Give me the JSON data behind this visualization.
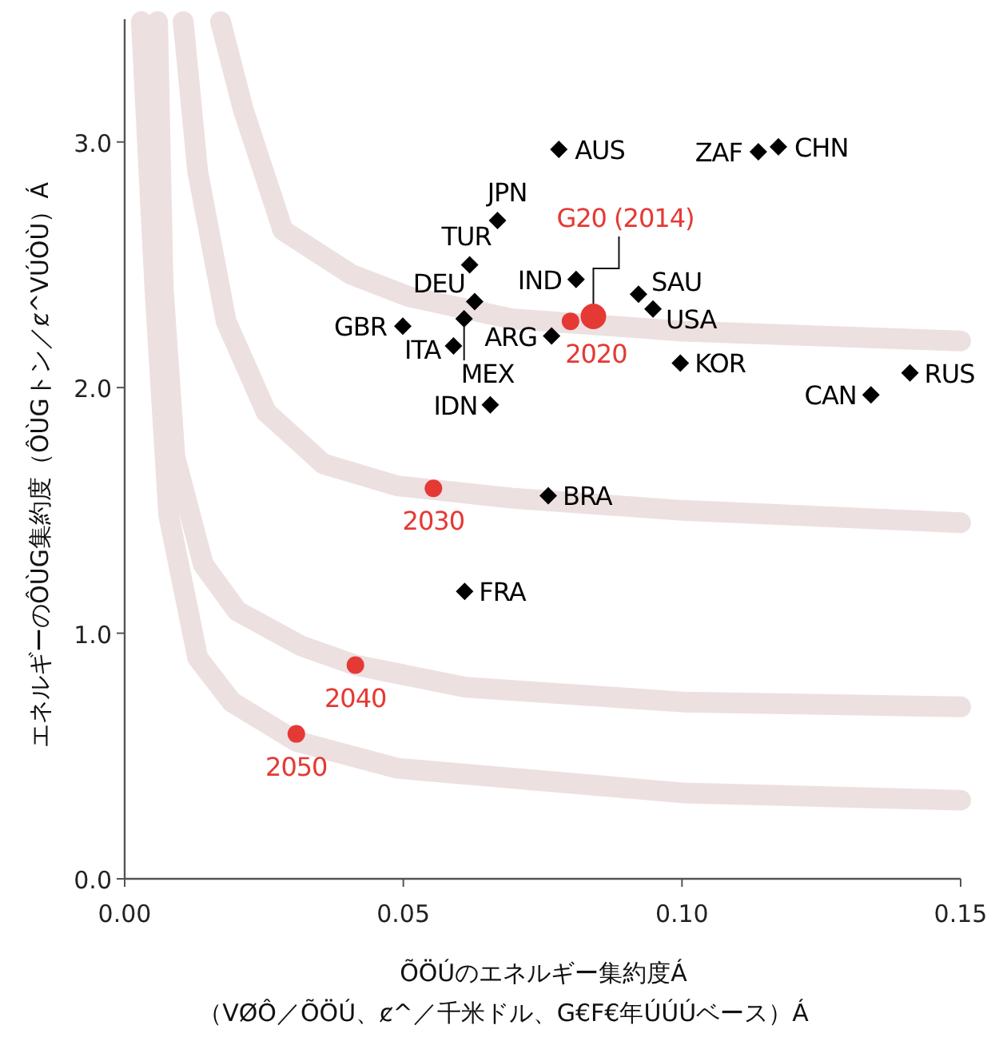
{
  "chart_data": {
    "type": "scatter",
    "xlabel": "ÕÖÚのエネルギー集約度Á\n（VØÔ／ÕÖÚ、ȼ^／千米ドル、G€F€年ÚÚÚベース）Á",
    "ylabel": "エネルギーのÔÙG集約度（ÔÙGトン／ȼ^VÚÒÙ）Á",
    "xlim": [
      0,
      0.15
    ],
    "xticks": [
      {
        "value": 0,
        "label": "0.00"
      },
      {
        "value": 0.05,
        "label": "0.05"
      },
      {
        "value": 0.1,
        "label": "0.10"
      },
      {
        "value": 0.15,
        "label": "0.15"
      }
    ],
    "ylim": [
      0,
      3.5
    ],
    "yticks": [
      {
        "value": 0,
        "label": "0.0"
      },
      {
        "value": 1,
        "label": "1.0"
      },
      {
        "value": 2,
        "label": "2.0"
      },
      {
        "value": 3,
        "label": "3.0"
      }
    ],
    "grid": false,
    "series": [
      {
        "type": "line",
        "color": "#ede0e0",
        "marker": "none",
        "x": [
          0.0172,
          0.0213,
          0.0284,
          0.0407,
          0.051,
          0.0694,
          0.1001,
          0.15
        ],
        "values": [
          3.49,
          3.13,
          2.64,
          2.46,
          2.37,
          2.28,
          2.23,
          2.19
        ]
      },
      {
        "type": "line",
        "color": "#ede0e0",
        "marker": "none",
        "x": [
          0.0105,
          0.0131,
          0.0182,
          0.0254,
          0.0356,
          0.0489,
          0.0694,
          0.1001,
          0.15
        ],
        "values": [
          3.49,
          2.88,
          2.27,
          1.9,
          1.69,
          1.6,
          1.55,
          1.5,
          1.45
        ]
      },
      {
        "type": "line",
        "color": "#ede0e0",
        "marker": "none",
        "x": [
          0.0059,
          0.0069,
          0.009,
          0.0141,
          0.0202,
          0.0315,
          0.0414,
          0.0612,
          0.1001,
          0.15
        ],
        "values": [
          3.49,
          2.41,
          1.72,
          1.28,
          1.09,
          0.95,
          0.87,
          0.78,
          0.72,
          0.7
        ]
      },
      {
        "type": "line",
        "color": "#ede0e0",
        "marker": "none",
        "x": [
          0.003,
          0.0054,
          0.0079,
          0.0131,
          0.0192,
          0.0308,
          0.0489,
          0.1001,
          0.15
        ],
        "values": [
          3.49,
          2.41,
          1.48,
          0.9,
          0.72,
          0.56,
          0.45,
          0.35,
          0.32
        ]
      },
      {
        "color": "#000000",
        "marker": "diamond",
        "x": [
          0.0779,
          0.1137,
          0.1173,
          0.0669,
          0.0619,
          0.0628,
          0.0609,
          0.0499,
          0.059,
          0.0766,
          0.081,
          0.0922,
          0.0948,
          0.0997,
          0.1339,
          0.1409,
          0.0656,
          0.076,
          0.061
        ],
        "values": [
          2.97,
          2.96,
          2.98,
          2.68,
          2.5,
          2.35,
          2.28,
          2.25,
          2.17,
          2.21,
          2.44,
          2.38,
          2.32,
          2.1,
          1.97,
          2.06,
          1.93,
          1.56,
          1.17
        ]
      },
      {
        "color": "#e53935",
        "marker": "circle",
        "x": [
          0.08,
          0.0554,
          0.0414,
          0.0308
        ],
        "values": [
          2.27,
          1.59,
          0.87,
          0.59
        ]
      },
      {
        "type": "bubble",
        "color": "#e53935",
        "marker": "circle",
        "x": [
          0.0841
        ],
        "values": [
          2.29
        ],
        "sizes": [
          1
        ]
      }
    ],
    "annotations": [
      {
        "text": "AUS",
        "x": 0.0779,
        "y": 2.97
      },
      {
        "text": "ZAF",
        "x": 0.1137,
        "y": 2.96
      },
      {
        "text": "CHN",
        "x": 0.1173,
        "y": 2.98
      },
      {
        "text": "JPN",
        "x": 0.0669,
        "y": 2.68
      },
      {
        "text": "TUR",
        "x": 0.0619,
        "y": 2.5
      },
      {
        "text": "DEU",
        "x": 0.0628,
        "y": 2.35
      },
      {
        "text": "MEX",
        "x": 0.0609,
        "y": 2.28
      },
      {
        "text": "GBR",
        "x": 0.0499,
        "y": 2.25
      },
      {
        "text": "ITA",
        "x": 0.059,
        "y": 2.17
      },
      {
        "text": "ARG",
        "x": 0.0766,
        "y": 2.21
      },
      {
        "text": "IND",
        "x": 0.081,
        "y": 2.44
      },
      {
        "text": "SAU",
        "x": 0.0922,
        "y": 2.38
      },
      {
        "text": "USA",
        "x": 0.0948,
        "y": 2.32
      },
      {
        "text": "KOR",
        "x": 0.0997,
        "y": 2.1
      },
      {
        "text": "CAN",
        "x": 0.1339,
        "y": 1.97
      },
      {
        "text": "RUS",
        "x": 0.1409,
        "y": 2.06
      },
      {
        "text": "IDN",
        "x": 0.0656,
        "y": 1.93
      },
      {
        "text": "BRA",
        "x": 0.076,
        "y": 1.56
      },
      {
        "text": "FRA",
        "x": 0.061,
        "y": 1.17
      },
      {
        "text": "2020",
        "x": 0.08,
        "y": 2.27
      },
      {
        "text": "G20 (2014)",
        "x": 0.0841,
        "y": 2.29
      },
      {
        "text": "2030",
        "x": 0.0554,
        "y": 1.59
      },
      {
        "text": "2040",
        "x": 0.0414,
        "y": 0.87
      },
      {
        "text": "2050",
        "x": 0.0308,
        "y": 0.59
      }
    ]
  }
}
